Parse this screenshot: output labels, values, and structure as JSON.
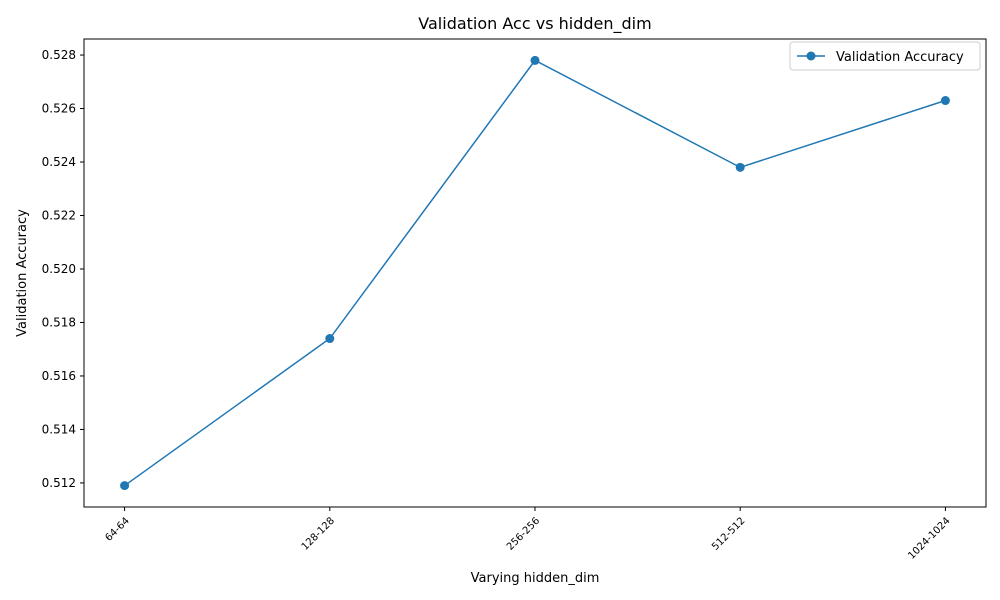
{
  "chart_data": {
    "type": "line",
    "title": "Validation Acc vs hidden_dim",
    "xlabel": "Varying hidden_dim",
    "ylabel": "Validation Accuracy",
    "categories": [
      "64-64",
      "128-128",
      "256-256",
      "512-512",
      "1024-1024"
    ],
    "series": [
      {
        "name": "Validation Accuracy",
        "values": [
          0.5119,
          0.5174,
          0.5278,
          0.5238,
          0.5263
        ],
        "color": "#1f77b4",
        "marker": "circle"
      }
    ],
    "ylim": [
      0.5111,
      0.5286
    ],
    "yticks": [
      0.512,
      0.514,
      0.516,
      0.518,
      0.52,
      0.522,
      0.524,
      0.526,
      0.528
    ],
    "ytick_labels": [
      "0.512",
      "0.514",
      "0.516",
      "0.518",
      "0.520",
      "0.522",
      "0.524",
      "0.526",
      "0.528"
    ],
    "grid": false,
    "legend_position": "top-right"
  }
}
